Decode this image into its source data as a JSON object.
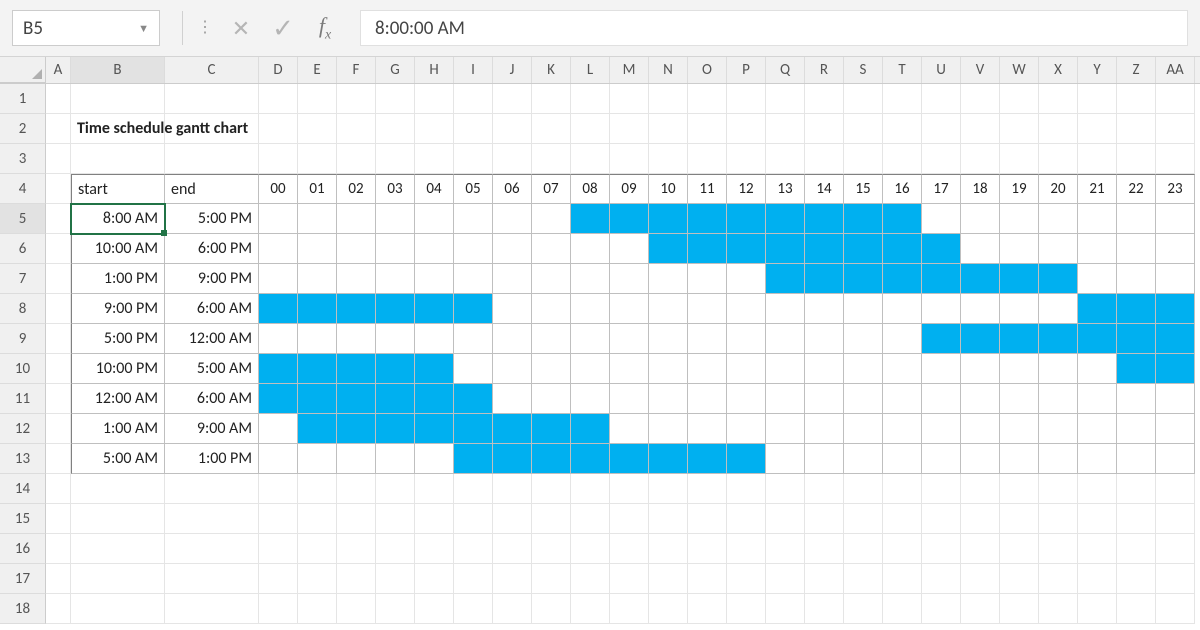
{
  "app": {
    "selected_cell_ref": "B5",
    "formula_value": "8:00:00 AM"
  },
  "title": "Time schedule gantt chart",
  "headers": {
    "start": "start",
    "end": "end"
  },
  "layout": {
    "colA_width": 25,
    "colB_width": 94,
    "colC_width": 94,
    "hourCell_width": 39,
    "columns": [
      "A",
      "B",
      "C",
      "D",
      "E",
      "F",
      "G",
      "H",
      "I",
      "J",
      "K",
      "L",
      "M",
      "N",
      "O",
      "P",
      "Q",
      "R",
      "S",
      "T",
      "U",
      "V",
      "W",
      "X",
      "Y",
      "Z",
      "AA"
    ],
    "hours": [
      "00",
      "01",
      "02",
      "03",
      "04",
      "05",
      "06",
      "07",
      "08",
      "09",
      "10",
      "11",
      "12",
      "13",
      "14",
      "15",
      "16",
      "17",
      "18",
      "19",
      "20",
      "21",
      "22",
      "23"
    ],
    "row_count": 18,
    "title_row": 2,
    "header_row": 4,
    "data_row_start": 5,
    "data_row_end": 13,
    "active": {
      "row": 5,
      "col": "B"
    }
  },
  "style": {
    "fill_color": "#00b0f0",
    "grid_line": "#e5e5e5",
    "table_line": "#bfbfbf",
    "outer_line": "#808080",
    "header_bg": "#f0f0f0",
    "selection_green": "#217346",
    "formula_bg": "#f3f3f3",
    "text_color": "#222222"
  },
  "schedule": [
    {
      "start": "8:00 AM",
      "end": "5:00 PM",
      "fill": [
        8,
        9,
        10,
        11,
        12,
        13,
        14,
        15,
        16
      ]
    },
    {
      "start": "10:00 AM",
      "end": "6:00 PM",
      "fill": [
        10,
        11,
        12,
        13,
        14,
        15,
        16,
        17
      ]
    },
    {
      "start": "1:00 PM",
      "end": "9:00 PM",
      "fill": [
        13,
        14,
        15,
        16,
        17,
        18,
        19,
        20
      ]
    },
    {
      "start": "9:00 PM",
      "end": "6:00 AM",
      "fill": [
        0,
        1,
        2,
        3,
        4,
        5,
        21,
        22,
        23
      ]
    },
    {
      "start": "5:00 PM",
      "end": "12:00 AM",
      "fill": [
        17,
        18,
        19,
        20,
        21,
        22,
        23
      ]
    },
    {
      "start": "10:00 PM",
      "end": "5:00 AM",
      "fill": [
        0,
        1,
        2,
        3,
        4,
        22,
        23
      ]
    },
    {
      "start": "12:00 AM",
      "end": "6:00 AM",
      "fill": [
        0,
        1,
        2,
        3,
        4,
        5
      ]
    },
    {
      "start": "1:00 AM",
      "end": "9:00 AM",
      "fill": [
        1,
        2,
        3,
        4,
        5,
        6,
        7,
        8
      ]
    },
    {
      "start": "5:00 AM",
      "end": "1:00 PM",
      "fill": [
        5,
        6,
        7,
        8,
        9,
        10,
        11,
        12
      ]
    }
  ]
}
